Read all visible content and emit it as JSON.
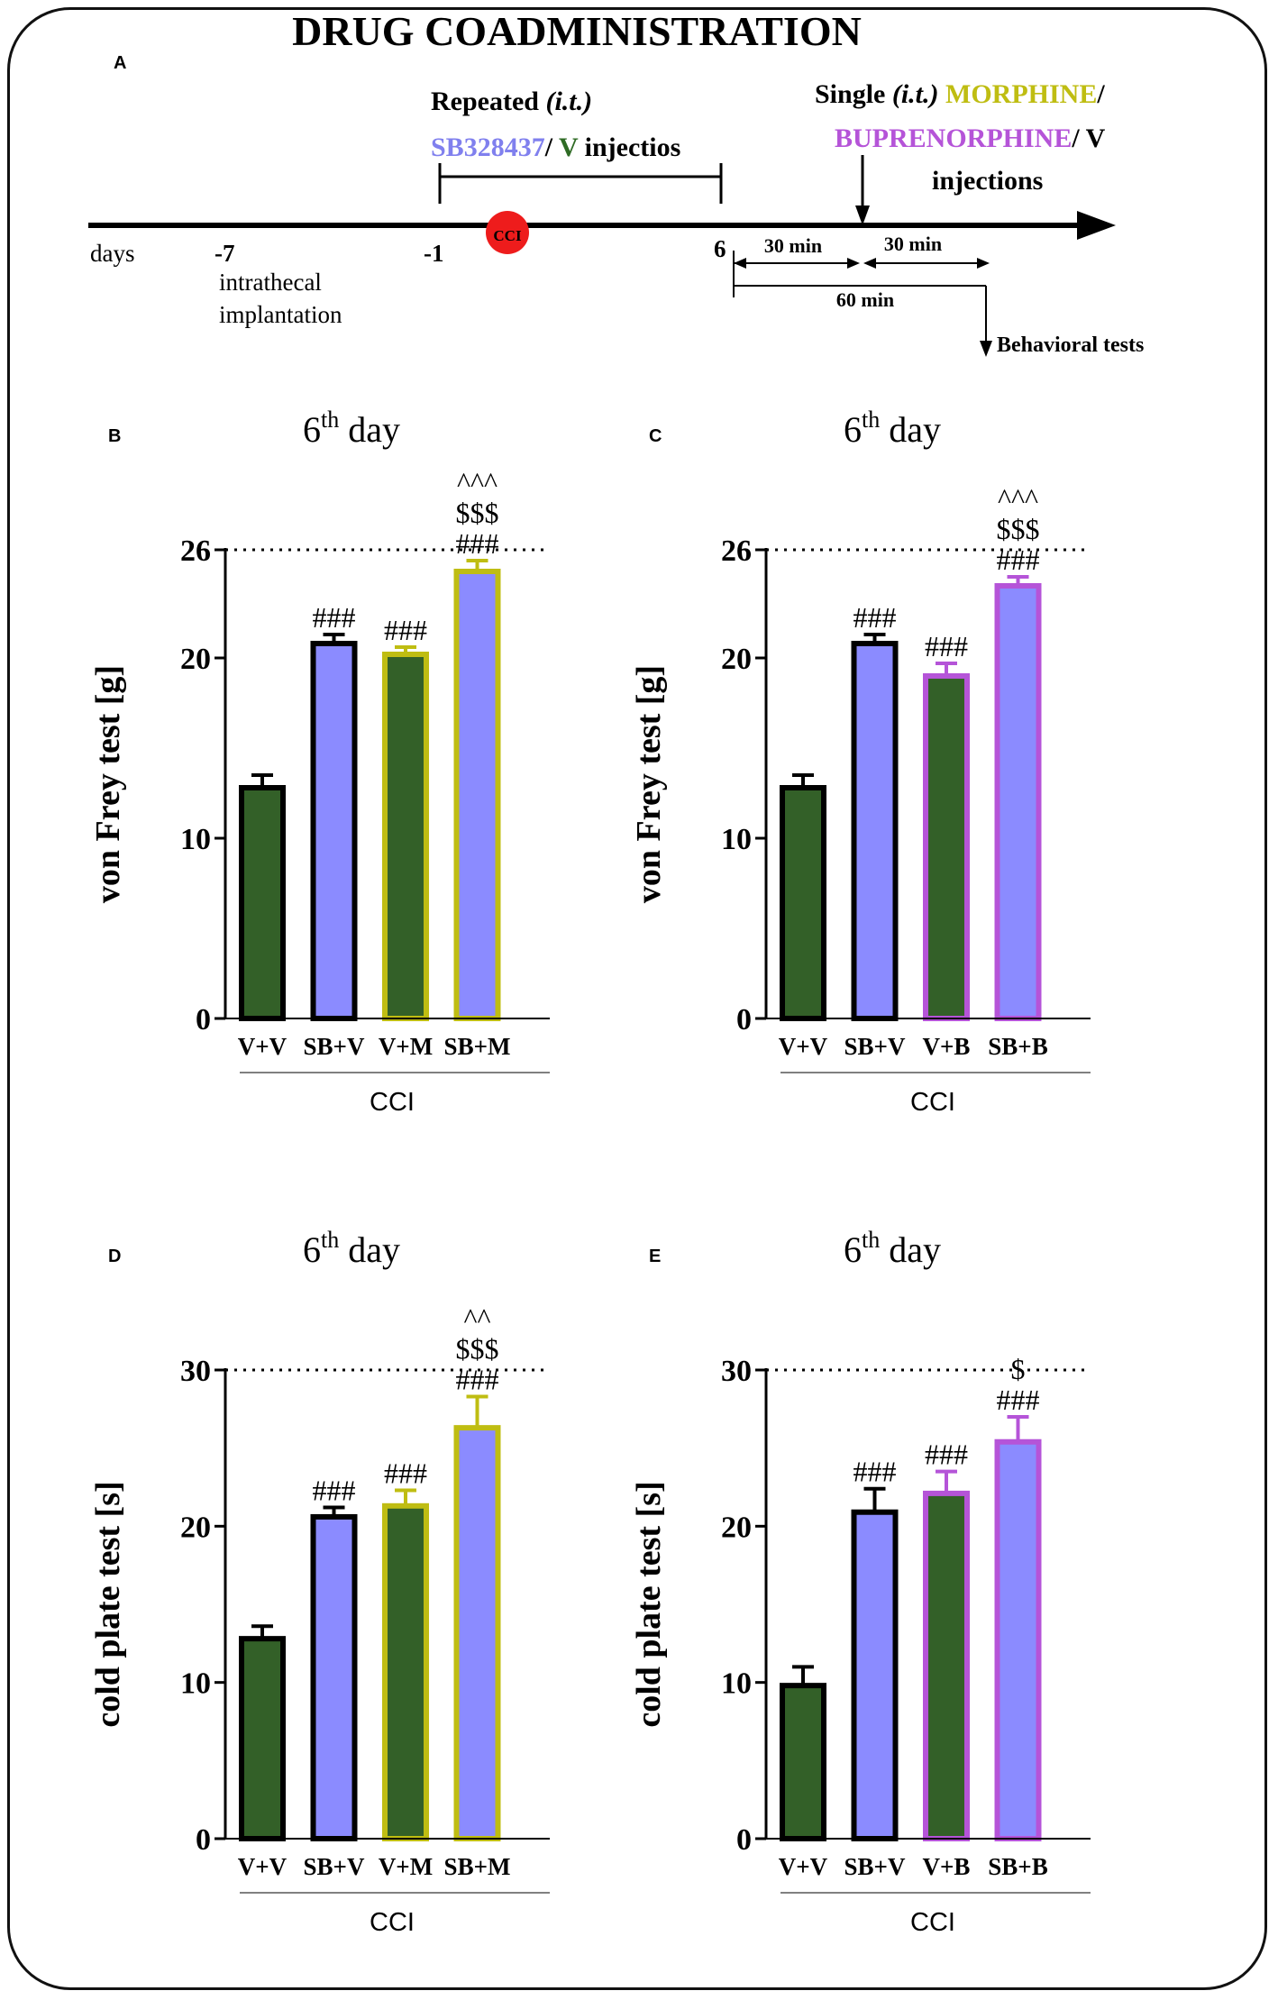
{
  "title": "DRUG COADMINISTRATION",
  "timeline": {
    "panel_letter": "A",
    "days_label": "days",
    "day_ticks": [
      "-7",
      "-1",
      "6"
    ],
    "implant_line1": "intrathecal",
    "implant_line2": "implantation",
    "cci_label": "CCI",
    "repeated_label": "Repeated",
    "it_label": "(i.t.)",
    "repeated_line2": {
      "sb": "SB328437",
      "slash": "/",
      "v": " V",
      "rest": " injectios"
    },
    "single_label": "Single",
    "single_it": "(i.t.)",
    "morphine": "MORPHINE",
    "slash": "/",
    "buprenorphine": "BUPRENORPHINE",
    "v_label": "/ V",
    "injections": "injections",
    "interval_1": "30 min",
    "interval_2": "30 min",
    "interval_total": "60 min",
    "behavioral": "Behavioral tests"
  },
  "colors": {
    "green": "#336028",
    "blue": "#8b8bff",
    "morphine": "#bfbd12",
    "buprenorphine": "#b554d8",
    "cci_red": "#ee1c1c",
    "sb_text": "#8080ee",
    "v_text": "#2f6b25"
  },
  "chart_data": [
    {
      "id": "B",
      "type": "bar",
      "title_main": "6",
      "title_sup": "th",
      "title_rest": " day",
      "ylabel": "von Frey test [g]",
      "ylim": [
        0,
        26
      ],
      "yticks": [
        0,
        10,
        20,
        26
      ],
      "ref_line": 26,
      "categories": [
        "V+V",
        "SB+V",
        "V+M",
        "SB+M"
      ],
      "group_label": "CCI",
      "values": [
        12.8,
        20.8,
        20.2,
        24.8
      ],
      "errors": [
        0.7,
        0.5,
        0.4,
        0.6
      ],
      "fills": [
        "green",
        "blue",
        "green",
        "blue"
      ],
      "borders": [
        "black",
        "black",
        "morphine",
        "morphine"
      ],
      "annotations": [
        [],
        [
          "###"
        ],
        [
          "###"
        ],
        [
          "###",
          "$$$",
          "^^^"
        ]
      ]
    },
    {
      "id": "C",
      "type": "bar",
      "title_main": "6",
      "title_sup": "th",
      "title_rest": " day",
      "ylabel": "von Frey test [g]",
      "ylim": [
        0,
        26
      ],
      "yticks": [
        0,
        10,
        20,
        26
      ],
      "ref_line": 26,
      "categories": [
        "V+V",
        "SB+V",
        "V+B",
        "SB+B"
      ],
      "group_label": "CCI",
      "values": [
        12.8,
        20.8,
        19.0,
        24.0
      ],
      "errors": [
        0.7,
        0.5,
        0.7,
        0.5
      ],
      "fills": [
        "green",
        "blue",
        "green",
        "blue"
      ],
      "borders": [
        "black",
        "black",
        "buprenorphine",
        "buprenorphine"
      ],
      "annotations": [
        [],
        [
          "###"
        ],
        [
          "###"
        ],
        [
          "###",
          "$$$",
          "^^^"
        ]
      ]
    },
    {
      "id": "D",
      "type": "bar",
      "title_main": "6",
      "title_sup": "th",
      "title_rest": " day",
      "ylabel": "cold plate test [s]",
      "ylim": [
        0,
        30
      ],
      "yticks": [
        0,
        10,
        20,
        30
      ],
      "ref_line": 30,
      "categories": [
        "V+V",
        "SB+V",
        "V+M",
        "SB+M"
      ],
      "group_label": "CCI",
      "values": [
        12.8,
        20.6,
        21.3,
        26.3
      ],
      "errors": [
        0.8,
        0.6,
        1.0,
        2.0
      ],
      "fills": [
        "green",
        "blue",
        "green",
        "blue"
      ],
      "borders": [
        "black",
        "black",
        "morphine",
        "morphine"
      ],
      "annotations": [
        [],
        [
          "###"
        ],
        [
          "###"
        ],
        [
          "###",
          "$$$",
          "^^"
        ]
      ]
    },
    {
      "id": "E",
      "type": "bar",
      "title_main": "6",
      "title_sup": "th",
      "title_rest": " day",
      "ylabel": "cold plate test [s]",
      "ylim": [
        0,
        30
      ],
      "yticks": [
        0,
        10,
        20,
        30
      ],
      "ref_line": 30,
      "categories": [
        "V+V",
        "SB+V",
        "V+B",
        "SB+B"
      ],
      "group_label": "CCI",
      "values": [
        9.8,
        20.9,
        22.1,
        25.4
      ],
      "errors": [
        1.2,
        1.5,
        1.4,
        1.6
      ],
      "fills": [
        "green",
        "blue",
        "green",
        "blue"
      ],
      "borders": [
        "black",
        "black",
        "buprenorphine",
        "buprenorphine"
      ],
      "annotations": [
        [],
        [
          "###"
        ],
        [
          "###"
        ],
        [
          "###",
          "$"
        ]
      ]
    }
  ]
}
